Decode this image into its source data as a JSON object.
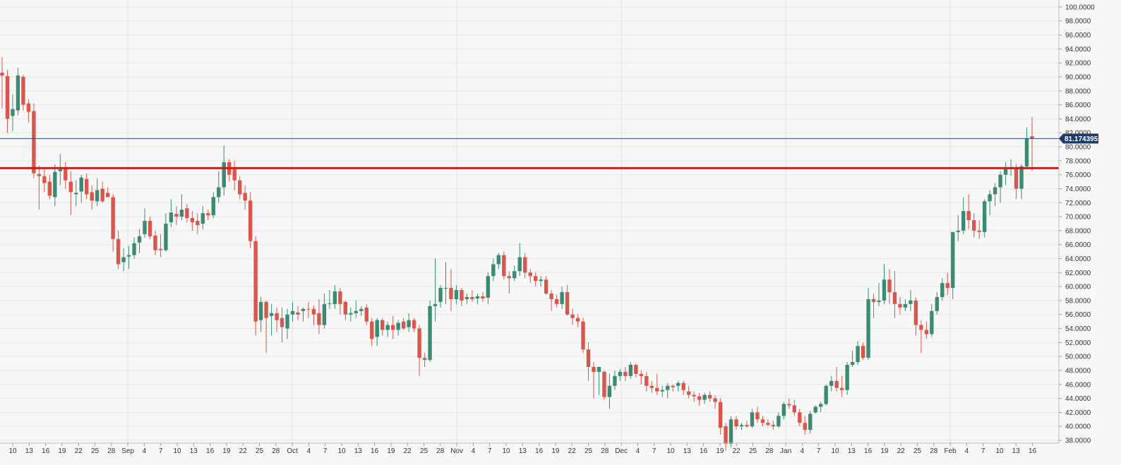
{
  "chart_data": {
    "type": "candlestick",
    "x_tick_labels": [
      "10",
      "13",
      "16",
      "19",
      "22",
      "25",
      "28",
      "Sep",
      "4",
      "7",
      "10",
      "13",
      "16",
      "19",
      "22",
      "25",
      "28",
      "Oct",
      "4",
      "7",
      "10",
      "13",
      "16",
      "19",
      "22",
      "25",
      "28",
      "Nov",
      "4",
      "7",
      "10",
      "13",
      "16",
      "19",
      "22",
      "25",
      "28",
      "Dec",
      "4",
      "7",
      "10",
      "13",
      "16",
      "19",
      "22",
      "25",
      "28",
      "Jan",
      "4",
      "7",
      "10",
      "13",
      "16",
      "19",
      "22",
      "25",
      "28",
      "Feb",
      "4",
      "7",
      "10",
      "13",
      "16"
    ],
    "y_tick_labels": [
      "38.0000",
      "40.0000",
      "42.0000",
      "44.0000",
      "46.0000",
      "48.0000",
      "50.0000",
      "52.0000",
      "54.0000",
      "56.0000",
      "58.0000",
      "60.0000",
      "62.0000",
      "64.0000",
      "66.0000",
      "68.0000",
      "70.0000",
      "72.0000",
      "74.0000",
      "76.0000",
      "78.0000",
      "80.0000",
      "82.0000",
      "84.0000",
      "86.0000",
      "88.0000",
      "90.0000",
      "92.0000",
      "94.0000",
      "96.0000",
      "98.0000",
      "100.0000"
    ],
    "ylim": [
      37.6,
      101
    ],
    "grid": true,
    "colors": {
      "up": "#3a8a74",
      "down": "#d9574a",
      "level_line": "#e01010",
      "price_line": "#2a4a7a",
      "price_tag_bg": "#1f3a66"
    },
    "horizontal_level": 76.95,
    "last_price": 81.17,
    "last_price_label": "81.174395",
    "candles": [
      {
        "o": 90.6,
        "h": 92.8,
        "l": 85.5,
        "c": 90.2
      },
      {
        "o": 90.1,
        "h": 91.0,
        "l": 82.0,
        "c": 84.0
      },
      {
        "o": 84.4,
        "h": 87.5,
        "l": 82.2,
        "c": 85.4
      },
      {
        "o": 85.2,
        "h": 91.3,
        "l": 84.5,
        "c": 90.2
      },
      {
        "o": 90.0,
        "h": 90.3,
        "l": 85.2,
        "c": 86.0
      },
      {
        "o": 86.2,
        "h": 86.8,
        "l": 83.5,
        "c": 85.0
      },
      {
        "o": 85.1,
        "h": 86.2,
        "l": 75.5,
        "c": 76.2
      },
      {
        "o": 76.1,
        "h": 77.3,
        "l": 71.0,
        "c": 75.8
      },
      {
        "o": 75.8,
        "h": 76.8,
        "l": 73.5,
        "c": 74.8
      },
      {
        "o": 75.0,
        "h": 76.0,
        "l": 72.5,
        "c": 73.0
      },
      {
        "o": 72.8,
        "h": 77.5,
        "l": 71.5,
        "c": 76.4
      },
      {
        "o": 76.5,
        "h": 79.0,
        "l": 74.5,
        "c": 76.8
      },
      {
        "o": 77.0,
        "h": 77.8,
        "l": 74.0,
        "c": 75.2
      },
      {
        "o": 75.0,
        "h": 76.5,
        "l": 70.2,
        "c": 73.5
      },
      {
        "o": 73.2,
        "h": 75.2,
        "l": 71.5,
        "c": 73.4
      },
      {
        "o": 73.6,
        "h": 76.0,
        "l": 72.0,
        "c": 75.6
      },
      {
        "o": 75.4,
        "h": 76.2,
        "l": 72.5,
        "c": 73.2
      },
      {
        "o": 73.5,
        "h": 74.5,
        "l": 71.0,
        "c": 72.3
      },
      {
        "o": 72.2,
        "h": 75.5,
        "l": 71.5,
        "c": 73.8
      },
      {
        "o": 74.0,
        "h": 75.0,
        "l": 72.0,
        "c": 72.2
      },
      {
        "o": 73.4,
        "h": 74.2,
        "l": 72.8,
        "c": 72.8
      },
      {
        "o": 72.8,
        "h": 73.2,
        "l": 65.0,
        "c": 66.8
      },
      {
        "o": 66.8,
        "h": 68.0,
        "l": 62.5,
        "c": 63.2
      },
      {
        "o": 63.5,
        "h": 65.5,
        "l": 62.2,
        "c": 64.2
      },
      {
        "o": 64.3,
        "h": 65.8,
        "l": 62.5,
        "c": 64.5
      },
      {
        "o": 64.5,
        "h": 67.0,
        "l": 64.0,
        "c": 66.2
      },
      {
        "o": 66.3,
        "h": 68.2,
        "l": 64.8,
        "c": 67.2
      },
      {
        "o": 67.5,
        "h": 71.2,
        "l": 67.0,
        "c": 69.4
      },
      {
        "o": 69.4,
        "h": 70.0,
        "l": 66.8,
        "c": 67.2
      },
      {
        "o": 67.3,
        "h": 68.0,
        "l": 64.5,
        "c": 65.2
      },
      {
        "o": 65.4,
        "h": 67.5,
        "l": 64.2,
        "c": 65.2
      },
      {
        "o": 65.2,
        "h": 70.5,
        "l": 65.0,
        "c": 69.0
      },
      {
        "o": 69.2,
        "h": 72.5,
        "l": 68.5,
        "c": 70.6
      },
      {
        "o": 70.4,
        "h": 71.5,
        "l": 68.8,
        "c": 70.0
      },
      {
        "o": 70.0,
        "h": 73.2,
        "l": 69.5,
        "c": 71.0
      },
      {
        "o": 71.2,
        "h": 71.8,
        "l": 69.2,
        "c": 69.8
      },
      {
        "o": 69.8,
        "h": 70.8,
        "l": 68.0,
        "c": 69.2
      },
      {
        "o": 69.4,
        "h": 70.5,
        "l": 67.5,
        "c": 68.8
      },
      {
        "o": 69.0,
        "h": 71.5,
        "l": 68.2,
        "c": 70.5
      },
      {
        "o": 70.5,
        "h": 71.0,
        "l": 69.5,
        "c": 70.2
      },
      {
        "o": 70.2,
        "h": 73.5,
        "l": 69.8,
        "c": 72.8
      },
      {
        "o": 72.8,
        "h": 76.5,
        "l": 72.0,
        "c": 74.2
      },
      {
        "o": 74.2,
        "h": 80.2,
        "l": 73.0,
        "c": 77.8
      },
      {
        "o": 77.8,
        "h": 78.2,
        "l": 75.0,
        "c": 76.0
      },
      {
        "o": 76.8,
        "h": 78.0,
        "l": 73.8,
        "c": 75.2
      },
      {
        "o": 75.2,
        "h": 75.8,
        "l": 72.5,
        "c": 73.2
      },
      {
        "o": 73.4,
        "h": 74.5,
        "l": 71.0,
        "c": 72.3
      },
      {
        "o": 72.3,
        "h": 73.5,
        "l": 65.5,
        "c": 66.5
      },
      {
        "o": 66.5,
        "h": 67.2,
        "l": 53.0,
        "c": 55.0
      },
      {
        "o": 55.2,
        "h": 58.5,
        "l": 53.5,
        "c": 57.8
      },
      {
        "o": 57.8,
        "h": 58.0,
        "l": 50.5,
        "c": 55.5
      },
      {
        "o": 55.8,
        "h": 57.5,
        "l": 53.0,
        "c": 56.2
      },
      {
        "o": 56.2,
        "h": 57.0,
        "l": 53.5,
        "c": 55.2
      },
      {
        "o": 55.5,
        "h": 57.0,
        "l": 52.0,
        "c": 54.2
      },
      {
        "o": 54.0,
        "h": 56.8,
        "l": 52.5,
        "c": 56.0
      },
      {
        "o": 56.0,
        "h": 57.8,
        "l": 55.0,
        "c": 56.5
      },
      {
        "o": 56.3,
        "h": 57.2,
        "l": 55.2,
        "c": 56.0
      },
      {
        "o": 56.5,
        "h": 57.0,
        "l": 55.0,
        "c": 56.8
      },
      {
        "o": 56.8,
        "h": 57.8,
        "l": 55.5,
        "c": 56.7
      },
      {
        "o": 56.8,
        "h": 57.3,
        "l": 54.5,
        "c": 56.0
      },
      {
        "o": 56.2,
        "h": 58.2,
        "l": 53.2,
        "c": 54.5
      },
      {
        "o": 54.5,
        "h": 59.0,
        "l": 54.0,
        "c": 57.5
      },
      {
        "o": 57.5,
        "h": 59.5,
        "l": 56.8,
        "c": 57.6
      },
      {
        "o": 57.5,
        "h": 60.2,
        "l": 56.8,
        "c": 59.3
      },
      {
        "o": 59.3,
        "h": 59.8,
        "l": 56.0,
        "c": 57.5
      },
      {
        "o": 57.8,
        "h": 58.0,
        "l": 55.2,
        "c": 56.0
      },
      {
        "o": 56.0,
        "h": 57.0,
        "l": 55.0,
        "c": 56.2
      },
      {
        "o": 56.2,
        "h": 58.0,
        "l": 55.5,
        "c": 56.5
      },
      {
        "o": 56.5,
        "h": 57.2,
        "l": 55.8,
        "c": 56.8
      },
      {
        "o": 57.0,
        "h": 57.5,
        "l": 54.5,
        "c": 55.0
      },
      {
        "o": 55.0,
        "h": 55.5,
        "l": 51.5,
        "c": 52.5
      },
      {
        "o": 52.8,
        "h": 55.5,
        "l": 51.5,
        "c": 55.2
      },
      {
        "o": 55.2,
        "h": 55.5,
        "l": 53.0,
        "c": 53.8
      },
      {
        "o": 53.8,
        "h": 55.0,
        "l": 52.8,
        "c": 54.5
      },
      {
        "o": 54.5,
        "h": 55.8,
        "l": 52.5,
        "c": 53.8
      },
      {
        "o": 53.8,
        "h": 55.2,
        "l": 53.0,
        "c": 54.8
      },
      {
        "o": 55.0,
        "h": 55.5,
        "l": 53.8,
        "c": 54.0
      },
      {
        "o": 54.2,
        "h": 56.2,
        "l": 53.5,
        "c": 55.2
      },
      {
        "o": 55.2,
        "h": 55.5,
        "l": 53.5,
        "c": 54.0
      },
      {
        "o": 54.0,
        "h": 54.5,
        "l": 47.2,
        "c": 49.8
      },
      {
        "o": 49.8,
        "h": 50.5,
        "l": 48.5,
        "c": 49.5
      },
      {
        "o": 49.5,
        "h": 58.0,
        "l": 49.2,
        "c": 57.2
      },
      {
        "o": 57.2,
        "h": 64.0,
        "l": 55.0,
        "c": 57.5
      },
      {
        "o": 57.8,
        "h": 60.2,
        "l": 57.0,
        "c": 59.8
      },
      {
        "o": 59.8,
        "h": 63.5,
        "l": 57.5,
        "c": 59.8
      },
      {
        "o": 59.8,
        "h": 62.5,
        "l": 56.5,
        "c": 58.2
      },
      {
        "o": 58.2,
        "h": 60.2,
        "l": 57.5,
        "c": 59.5
      },
      {
        "o": 59.5,
        "h": 59.8,
        "l": 57.2,
        "c": 58.0
      },
      {
        "o": 58.2,
        "h": 59.0,
        "l": 57.5,
        "c": 58.5
      },
      {
        "o": 58.5,
        "h": 59.5,
        "l": 57.8,
        "c": 58.2
      },
      {
        "o": 58.3,
        "h": 59.0,
        "l": 57.5,
        "c": 58.6
      },
      {
        "o": 58.6,
        "h": 59.2,
        "l": 57.8,
        "c": 58.3
      },
      {
        "o": 58.4,
        "h": 62.0,
        "l": 57.5,
        "c": 61.5
      },
      {
        "o": 61.5,
        "h": 64.0,
        "l": 60.8,
        "c": 63.2
      },
      {
        "o": 63.2,
        "h": 64.8,
        "l": 62.5,
        "c": 64.5
      },
      {
        "o": 64.5,
        "h": 65.0,
        "l": 61.0,
        "c": 61.5
      },
      {
        "o": 61.5,
        "h": 62.2,
        "l": 59.0,
        "c": 61.2
      },
      {
        "o": 61.2,
        "h": 63.0,
        "l": 60.8,
        "c": 62.2
      },
      {
        "o": 62.2,
        "h": 66.2,
        "l": 61.5,
        "c": 64.2
      },
      {
        "o": 64.2,
        "h": 64.8,
        "l": 61.2,
        "c": 62.0
      },
      {
        "o": 62.0,
        "h": 62.5,
        "l": 60.5,
        "c": 61.5
      },
      {
        "o": 61.5,
        "h": 62.0,
        "l": 60.0,
        "c": 60.8
      },
      {
        "o": 60.8,
        "h": 61.5,
        "l": 60.0,
        "c": 61.0
      },
      {
        "o": 61.0,
        "h": 61.5,
        "l": 58.8,
        "c": 59.0
      },
      {
        "o": 59.0,
        "h": 59.5,
        "l": 56.5,
        "c": 58.2
      },
      {
        "o": 58.2,
        "h": 58.8,
        "l": 57.0,
        "c": 57.5
      },
      {
        "o": 57.5,
        "h": 60.0,
        "l": 56.8,
        "c": 59.2
      },
      {
        "o": 59.2,
        "h": 60.2,
        "l": 55.8,
        "c": 56.0
      },
      {
        "o": 56.0,
        "h": 56.8,
        "l": 54.5,
        "c": 55.5
      },
      {
        "o": 55.5,
        "h": 56.0,
        "l": 54.2,
        "c": 55.0
      },
      {
        "o": 55.0,
        "h": 55.5,
        "l": 50.5,
        "c": 51.0
      },
      {
        "o": 51.0,
        "h": 52.0,
        "l": 46.5,
        "c": 48.5
      },
      {
        "o": 48.5,
        "h": 49.2,
        "l": 44.0,
        "c": 47.8
      },
      {
        "o": 47.8,
        "h": 48.5,
        "l": 44.5,
        "c": 48.5
      },
      {
        "o": 47.8,
        "h": 48.0,
        "l": 43.8,
        "c": 44.2
      },
      {
        "o": 44.2,
        "h": 47.5,
        "l": 42.5,
        "c": 45.8
      },
      {
        "o": 45.8,
        "h": 48.0,
        "l": 45.2,
        "c": 47.2
      },
      {
        "o": 47.2,
        "h": 48.2,
        "l": 46.5,
        "c": 47.8
      },
      {
        "o": 47.8,
        "h": 48.5,
        "l": 46.5,
        "c": 47.2
      },
      {
        "o": 47.2,
        "h": 49.2,
        "l": 46.8,
        "c": 48.8
      },
      {
        "o": 48.8,
        "h": 49.0,
        "l": 47.0,
        "c": 47.5
      },
      {
        "o": 47.5,
        "h": 48.0,
        "l": 46.0,
        "c": 47.2
      },
      {
        "o": 47.2,
        "h": 47.8,
        "l": 45.0,
        "c": 45.8
      },
      {
        "o": 45.8,
        "h": 46.5,
        "l": 44.8,
        "c": 45.5
      },
      {
        "o": 45.5,
        "h": 47.5,
        "l": 44.5,
        "c": 45.0
      },
      {
        "o": 45.0,
        "h": 45.8,
        "l": 44.2,
        "c": 45.2
      },
      {
        "o": 45.2,
        "h": 46.2,
        "l": 44.0,
        "c": 45.8
      },
      {
        "o": 45.8,
        "h": 46.0,
        "l": 45.0,
        "c": 45.6
      },
      {
        "o": 45.8,
        "h": 46.5,
        "l": 45.0,
        "c": 46.2
      },
      {
        "o": 46.2,
        "h": 46.5,
        "l": 44.5,
        "c": 45.2
      },
      {
        "o": 45.0,
        "h": 45.8,
        "l": 44.0,
        "c": 44.5
      },
      {
        "o": 44.5,
        "h": 45.0,
        "l": 43.5,
        "c": 44.3
      },
      {
        "o": 44.3,
        "h": 44.8,
        "l": 43.0,
        "c": 43.8
      },
      {
        "o": 43.8,
        "h": 44.8,
        "l": 43.2,
        "c": 44.5
      },
      {
        "o": 44.5,
        "h": 45.0,
        "l": 43.5,
        "c": 44.0
      },
      {
        "o": 44.0,
        "h": 44.5,
        "l": 42.5,
        "c": 43.5
      },
      {
        "o": 43.5,
        "h": 44.0,
        "l": 38.8,
        "c": 39.8
      },
      {
        "o": 40.0,
        "h": 40.5,
        "l": 36.5,
        "c": 37.5
      },
      {
        "o": 37.5,
        "h": 41.5,
        "l": 37.0,
        "c": 41.0
      },
      {
        "o": 41.0,
        "h": 41.5,
        "l": 39.5,
        "c": 40.0
      },
      {
        "o": 40.0,
        "h": 40.5,
        "l": 39.5,
        "c": 40.2
      },
      {
        "o": 40.2,
        "h": 40.8,
        "l": 39.8,
        "c": 40.0
      },
      {
        "o": 40.0,
        "h": 42.5,
        "l": 39.8,
        "c": 42.0
      },
      {
        "o": 42.0,
        "h": 42.8,
        "l": 40.5,
        "c": 41.0
      },
      {
        "o": 41.0,
        "h": 41.5,
        "l": 40.0,
        "c": 40.5
      },
      {
        "o": 40.5,
        "h": 41.0,
        "l": 40.0,
        "c": 40.2
      },
      {
        "o": 40.2,
        "h": 40.8,
        "l": 39.5,
        "c": 40.0
      },
      {
        "o": 40.0,
        "h": 42.0,
        "l": 39.8,
        "c": 41.5
      },
      {
        "o": 41.5,
        "h": 43.5,
        "l": 41.0,
        "c": 43.2
      },
      {
        "o": 43.2,
        "h": 44.0,
        "l": 42.5,
        "c": 43.0
      },
      {
        "o": 43.0,
        "h": 43.8,
        "l": 41.5,
        "c": 42.0
      },
      {
        "o": 42.0,
        "h": 42.5,
        "l": 40.0,
        "c": 40.5
      },
      {
        "o": 40.5,
        "h": 41.5,
        "l": 38.8,
        "c": 39.5
      },
      {
        "o": 39.5,
        "h": 42.2,
        "l": 39.0,
        "c": 41.8
      },
      {
        "o": 42.0,
        "h": 43.0,
        "l": 41.8,
        "c": 42.8
      },
      {
        "o": 42.8,
        "h": 43.5,
        "l": 42.0,
        "c": 43.2
      },
      {
        "o": 43.2,
        "h": 46.0,
        "l": 43.0,
        "c": 45.8
      },
      {
        "o": 45.8,
        "h": 47.2,
        "l": 45.0,
        "c": 46.5
      },
      {
        "o": 46.5,
        "h": 48.5,
        "l": 45.0,
        "c": 45.5
      },
      {
        "o": 45.5,
        "h": 47.2,
        "l": 44.2,
        "c": 45.2
      },
      {
        "o": 45.2,
        "h": 49.2,
        "l": 44.5,
        "c": 48.8
      },
      {
        "o": 48.8,
        "h": 50.8,
        "l": 48.5,
        "c": 49.2
      },
      {
        "o": 49.2,
        "h": 52.2,
        "l": 48.8,
        "c": 51.5
      },
      {
        "o": 51.5,
        "h": 52.0,
        "l": 49.5,
        "c": 49.8
      },
      {
        "o": 49.8,
        "h": 59.8,
        "l": 49.5,
        "c": 58.2
      },
      {
        "o": 58.2,
        "h": 59.0,
        "l": 55.5,
        "c": 57.8
      },
      {
        "o": 57.8,
        "h": 60.5,
        "l": 57.2,
        "c": 58.0
      },
      {
        "o": 58.0,
        "h": 63.2,
        "l": 57.5,
        "c": 61.0
      },
      {
        "o": 61.0,
        "h": 62.5,
        "l": 57.5,
        "c": 59.2
      },
      {
        "o": 59.2,
        "h": 62.2,
        "l": 55.5,
        "c": 57.5
      },
      {
        "o": 57.5,
        "h": 58.5,
        "l": 56.0,
        "c": 57.0
      },
      {
        "o": 57.0,
        "h": 58.2,
        "l": 56.5,
        "c": 57.5
      },
      {
        "o": 57.5,
        "h": 59.5,
        "l": 56.5,
        "c": 58.0
      },
      {
        "o": 58.0,
        "h": 58.5,
        "l": 53.0,
        "c": 54.5
      },
      {
        "o": 54.5,
        "h": 55.2,
        "l": 50.5,
        "c": 53.8
      },
      {
        "o": 53.8,
        "h": 55.0,
        "l": 52.5,
        "c": 53.2
      },
      {
        "o": 53.2,
        "h": 57.5,
        "l": 52.8,
        "c": 56.5
      },
      {
        "o": 56.5,
        "h": 59.2,
        "l": 56.0,
        "c": 58.5
      },
      {
        "o": 58.5,
        "h": 61.2,
        "l": 58.0,
        "c": 60.5
      },
      {
        "o": 60.5,
        "h": 62.0,
        "l": 58.8,
        "c": 59.8
      },
      {
        "o": 59.8,
        "h": 67.8,
        "l": 58.2,
        "c": 67.8
      },
      {
        "o": 67.8,
        "h": 70.2,
        "l": 66.5,
        "c": 68.0
      },
      {
        "o": 68.0,
        "h": 72.8,
        "l": 67.5,
        "c": 70.8
      },
      {
        "o": 70.8,
        "h": 73.2,
        "l": 68.2,
        "c": 69.5
      },
      {
        "o": 69.5,
        "h": 70.5,
        "l": 67.0,
        "c": 68.0
      },
      {
        "o": 68.0,
        "h": 69.5,
        "l": 66.8,
        "c": 67.8
      },
      {
        "o": 67.8,
        "h": 72.5,
        "l": 67.0,
        "c": 72.2
      },
      {
        "o": 72.2,
        "h": 73.8,
        "l": 70.2,
        "c": 73.2
      },
      {
        "o": 73.2,
        "h": 74.8,
        "l": 71.5,
        "c": 74.2
      },
      {
        "o": 74.2,
        "h": 76.5,
        "l": 72.0,
        "c": 76.0
      },
      {
        "o": 76.0,
        "h": 77.8,
        "l": 74.5,
        "c": 76.8
      },
      {
        "o": 76.8,
        "h": 78.2,
        "l": 75.8,
        "c": 77.0
      },
      {
        "o": 77.0,
        "h": 77.5,
        "l": 72.5,
        "c": 74.0
      },
      {
        "o": 74.0,
        "h": 77.5,
        "l": 72.5,
        "c": 77.2
      },
      {
        "o": 77.2,
        "h": 82.8,
        "l": 76.8,
        "c": 81.2
      },
      {
        "o": 81.5,
        "h": 84.3,
        "l": 76.5,
        "c": 81.17
      }
    ]
  }
}
